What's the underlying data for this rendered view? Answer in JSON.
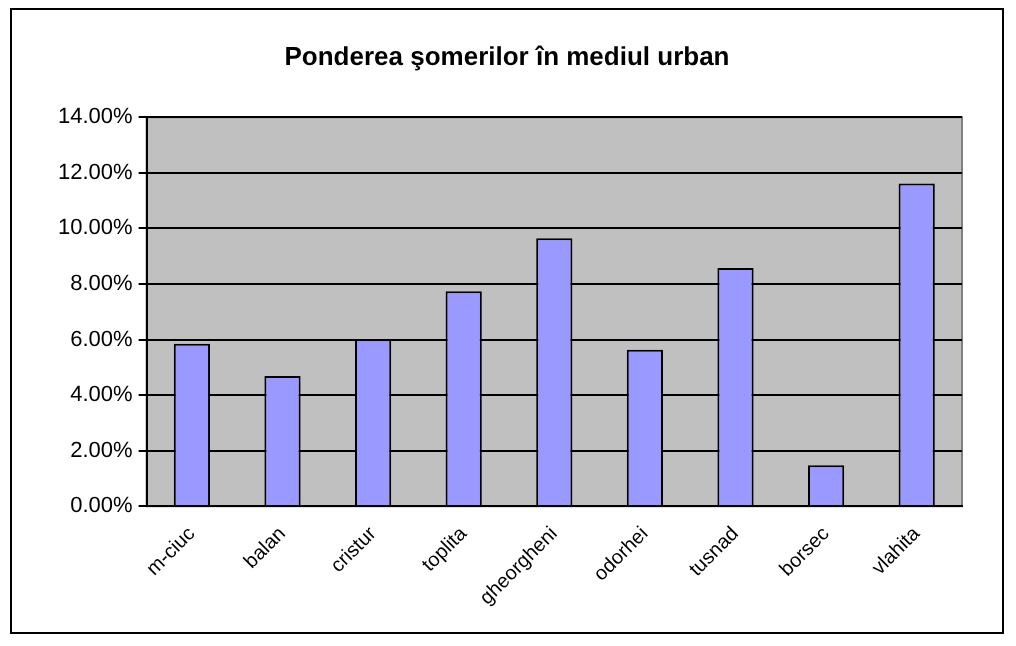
{
  "chart_data": {
    "type": "bar",
    "title": "Ponderea şomerilor în mediul urban",
    "categories": [
      "m-ciuc",
      "balan",
      "cristur",
      "toplita",
      "gheorgheni",
      "odorhei",
      "tusnad",
      "borsec",
      "vlahita"
    ],
    "values": [
      5.85,
      4.69,
      6.01,
      7.74,
      9.64,
      5.63,
      8.57,
      1.48,
      11.61
    ],
    "color": "#9999ff",
    "ylim": [
      0,
      14
    ],
    "yticks": [
      {
        "value": 0,
        "label": "0.00%"
      },
      {
        "value": 2,
        "label": "2.00%"
      },
      {
        "value": 4,
        "label": "4.00%"
      },
      {
        "value": 6,
        "label": "6.00%"
      },
      {
        "value": 8,
        "label": "8.00%"
      },
      {
        "value": 10,
        "label": "10.00%"
      },
      {
        "value": 12,
        "label": "12.00%"
      },
      {
        "value": 14,
        "label": "14.00%"
      }
    ],
    "grid": "y",
    "legend": false
  }
}
